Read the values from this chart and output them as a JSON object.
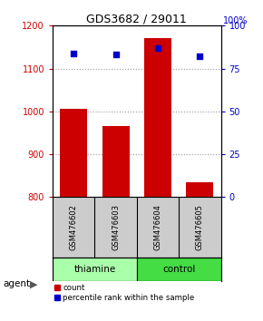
{
  "title": "GDS3682 / 29011",
  "samples": [
    "GSM476602",
    "GSM476603",
    "GSM476604",
    "GSM476605"
  ],
  "counts": [
    1005,
    965,
    1170,
    835
  ],
  "percentiles": [
    84,
    83,
    87,
    82
  ],
  "baseline": 800,
  "ylim_left": [
    800,
    1200
  ],
  "ylim_right": [
    0,
    100
  ],
  "yticks_left": [
    800,
    900,
    1000,
    1100,
    1200
  ],
  "yticks_right": [
    0,
    25,
    50,
    75,
    100
  ],
  "bar_color": "#cc0000",
  "dot_color": "#0000cc",
  "bar_width": 0.65,
  "groups": [
    {
      "label": "thiamine",
      "samples": [
        0,
        1
      ],
      "color": "#aaffaa"
    },
    {
      "label": "control",
      "samples": [
        2,
        3
      ],
      "color": "#44dd44"
    }
  ],
  "agent_label": "agent",
  "legend_count_label": "count",
  "legend_pct_label": "percentile rank within the sample",
  "grid_color": "#999999",
  "left_axis_color": "#cc0000",
  "right_axis_color": "#0000cc",
  "bg_color_sample_row": "#cccccc",
  "title_fontsize": 9
}
